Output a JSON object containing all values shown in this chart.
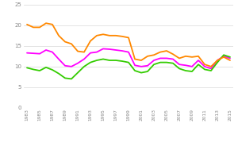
{
  "years": [
    1983,
    1984,
    1985,
    1986,
    1987,
    1988,
    1989,
    1990,
    1991,
    1992,
    1993,
    1994,
    1995,
    1996,
    1997,
    1998,
    1999,
    2000,
    2001,
    2002,
    2003,
    2004,
    2005,
    2006,
    2007,
    2008,
    2009,
    2010,
    2011,
    2012,
    2013,
    2014,
    2015
  ],
  "total": [
    13.3,
    13.2,
    13.1,
    14.0,
    13.5,
    11.8,
    10.2,
    10.0,
    10.8,
    11.8,
    13.3,
    13.5,
    14.3,
    14.2,
    14.0,
    13.8,
    13.5,
    10.3,
    10.0,
    10.2,
    11.5,
    12.0,
    12.0,
    11.8,
    10.5,
    10.3,
    10.0,
    11.5,
    10.0,
    9.5,
    11.5,
    12.5,
    12.0
  ],
  "hommes": [
    9.7,
    9.3,
    9.0,
    9.8,
    9.2,
    8.3,
    7.2,
    7.0,
    8.5,
    10.0,
    11.0,
    11.5,
    11.8,
    11.5,
    11.5,
    11.3,
    11.0,
    9.0,
    8.5,
    8.8,
    10.5,
    11.0,
    11.0,
    10.8,
    9.5,
    9.0,
    8.8,
    10.5,
    9.3,
    9.0,
    11.0,
    12.8,
    12.3
  ],
  "femmes": [
    20.2,
    19.5,
    19.5,
    20.5,
    20.2,
    17.5,
    16.0,
    15.5,
    13.7,
    13.5,
    16.2,
    17.5,
    17.8,
    17.5,
    17.5,
    17.3,
    17.0,
    11.8,
    11.5,
    12.5,
    12.8,
    13.5,
    13.8,
    13.0,
    12.0,
    12.5,
    12.3,
    12.5,
    10.5,
    10.0,
    11.5,
    12.3,
    11.5
  ],
  "total_color": "#ff00ff",
  "hommes_color": "#33cc00",
  "femmes_color": "#ff8800",
  "ylim": [
    0,
    25
  ],
  "yticks": [
    0,
    5,
    10,
    15,
    20,
    25
  ],
  "bg_color": "#ffffff",
  "grid_color": "#d8d8d8",
  "tick_color": "#888888",
  "xtick_years": [
    1983,
    1985,
    1987,
    1989,
    1991,
    1993,
    1995,
    1997,
    1999,
    2001,
    2003,
    2005,
    2007,
    2009,
    2011,
    2013,
    2015
  ]
}
